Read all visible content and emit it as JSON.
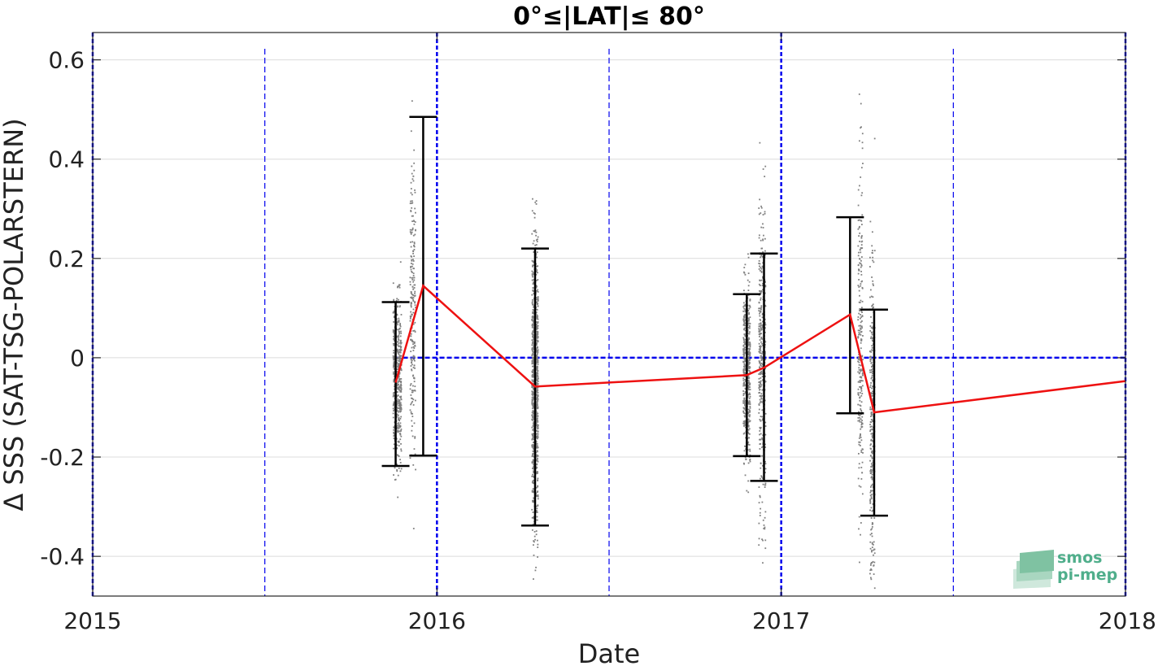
{
  "chart_data": {
    "type": "scatter",
    "title": "0°≤|LAT|≤ 80°",
    "xlabel": "Date",
    "ylabel": "Δ SSS (SAT-TSG-POLARSTERN)",
    "xlim": [
      2015.0,
      2018.0
    ],
    "ylim": [
      -0.48,
      0.655
    ],
    "x_ticks": [
      {
        "value": 2015.0,
        "label": "2015"
      },
      {
        "value": 2016.0,
        "label": "2016"
      },
      {
        "value": 2017.0,
        "label": "2017"
      },
      {
        "value": 2018.0,
        "label": "2018"
      }
    ],
    "y_ticks": [
      {
        "value": 0.6,
        "label": "0.6"
      },
      {
        "value": 0.4,
        "label": "0.4"
      },
      {
        "value": 0.2,
        "label": "0.2"
      },
      {
        "value": 0.0,
        "label": "0"
      },
      {
        "value": -0.2,
        "label": "-0.2"
      },
      {
        "value": -0.4,
        "label": "-0.4"
      }
    ],
    "grid": "horizontal",
    "year_lines": [
      2015.0,
      2016.0,
      2017.0,
      2018.0
    ],
    "half_year_lines": [
      2015.5,
      2016.5,
      2017.5
    ],
    "zero_line": {
      "y": 0,
      "x_start": 2015.88
    },
    "mean_line": {
      "color": "#ee1111",
      "points": [
        {
          "x": 2015.88,
          "y": -0.05
        },
        {
          "x": 2015.96,
          "y": 0.145
        },
        {
          "x": 2016.285,
          "y": -0.058
        },
        {
          "x": 2016.9,
          "y": -0.035
        },
        {
          "x": 2016.95,
          "y": -0.02
        },
        {
          "x": 2017.2,
          "y": 0.087
        },
        {
          "x": 2017.27,
          "y": -0.11
        },
        {
          "x": 2018.0,
          "y": -0.047
        }
      ]
    },
    "error_bars": [
      {
        "x": 2015.88,
        "low": -0.218,
        "high": 0.112
      },
      {
        "x": 2015.96,
        "low": -0.197,
        "high": 0.485
      },
      {
        "x": 2016.285,
        "low": -0.338,
        "high": 0.22
      },
      {
        "x": 2016.9,
        "low": -0.198,
        "high": 0.128
      },
      {
        "x": 2016.95,
        "low": -0.248,
        "high": 0.21
      },
      {
        "x": 2017.2,
        "low": -0.112,
        "high": 0.283
      },
      {
        "x": 2017.27,
        "low": -0.318,
        "high": 0.097
      }
    ],
    "scatter_clusters": [
      {
        "x_center": 2015.885,
        "x_spread": 0.012,
        "mean": -0.05,
        "sd": 0.11,
        "n": 520
      },
      {
        "x_center": 2015.93,
        "x_spread": 0.008,
        "mean": 0.1,
        "sd": 0.2,
        "n": 230
      },
      {
        "x_center": 2016.285,
        "x_spread": 0.009,
        "mean": -0.05,
        "sd": 0.17,
        "n": 1000
      },
      {
        "x_center": 2016.9,
        "x_spread": 0.01,
        "mean": -0.03,
        "sd": 0.11,
        "n": 500
      },
      {
        "x_center": 2016.945,
        "x_spread": 0.01,
        "mean": -0.01,
        "sd": 0.2,
        "n": 400
      },
      {
        "x_center": 2017.23,
        "x_spread": 0.007,
        "mean": 0.03,
        "sd": 0.23,
        "n": 240
      },
      {
        "x_center": 2017.265,
        "x_spread": 0.007,
        "mean": -0.12,
        "sd": 0.22,
        "n": 320
      }
    ],
    "colors": {
      "scatter": "#808080",
      "mean": "#ee1111",
      "error_bar": "#000000",
      "guides": "#0000ee",
      "grid": "#dcdcdc"
    }
  },
  "logo": {
    "line1": "smos",
    "line2": "pi-mep",
    "color": "#4fae8b"
  }
}
